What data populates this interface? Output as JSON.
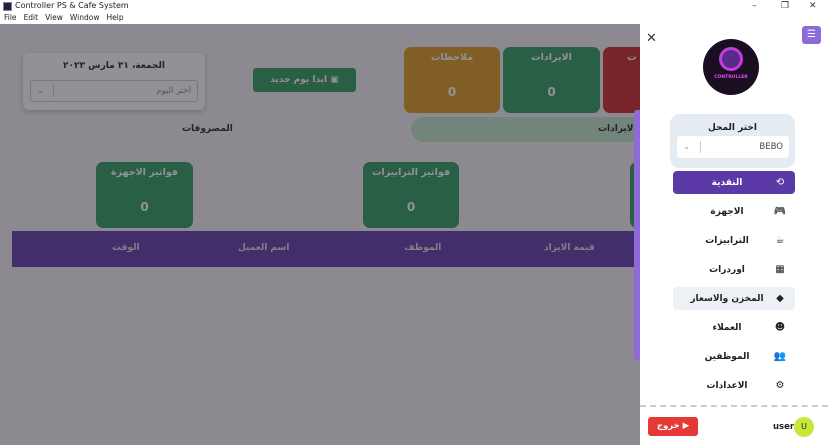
{
  "window": {
    "title": "Controller PS & Cafe System",
    "menu": [
      "File",
      "Edit",
      "View",
      "Window",
      "Help"
    ],
    "controls": {
      "minimize": "–",
      "maximize": "❐",
      "close": "✕"
    }
  },
  "main": {
    "stats": [
      {
        "label": "ملاحظات",
        "value": "0",
        "color": "#d99a1c"
      },
      {
        "label": "الايرادات",
        "value": "0",
        "color": "#2a9d5a"
      },
      {
        "label": "ت",
        "value": "",
        "color": "#c62828"
      }
    ],
    "progress_label": "الايرادات",
    "expenses_label": "المصروفات",
    "date_card": {
      "date": "الجمعة، ٣١ مارس ٢٠٢٣",
      "day_placeholder": "اختر اليوم"
    },
    "new_day_button": "ابدا يوم جديد",
    "invoice_cards": [
      {
        "label": "فواتير الاجهزة",
        "value": "0"
      },
      {
        "label": "فواتير الترابيزات",
        "value": "0"
      }
    ],
    "table_headers": [
      "قيمة الايراد",
      "الموظف",
      "اسم العميل",
      "الوقت"
    ]
  },
  "drawer": {
    "store_label": "اختر المحل",
    "store_value": "BEBO",
    "logo_text": "CONTROLLER",
    "nav": [
      {
        "label": "النقدية",
        "icon": "cash-icon",
        "glyph": "⟲",
        "active": true
      },
      {
        "label": "الاجهزة",
        "icon": "gamepad-icon",
        "glyph": "🎮"
      },
      {
        "label": "الترابيزات",
        "icon": "table-icon",
        "glyph": "☕"
      },
      {
        "label": "اوردرات",
        "icon": "orders-icon",
        "glyph": "▦"
      },
      {
        "label": "المخزن والاسعار",
        "icon": "tag-icon",
        "glyph": "◆",
        "hover": true
      },
      {
        "label": "العملاء",
        "icon": "smile-icon",
        "glyph": "☻"
      },
      {
        "label": "الموظفين",
        "icon": "users-icon",
        "glyph": "👥"
      },
      {
        "label": "الاعدادات",
        "icon": "gear-icon",
        "glyph": "⚙"
      }
    ],
    "logout": "خروج",
    "user": "user",
    "avatar": "U",
    "accent": "#5b3aa8"
  }
}
